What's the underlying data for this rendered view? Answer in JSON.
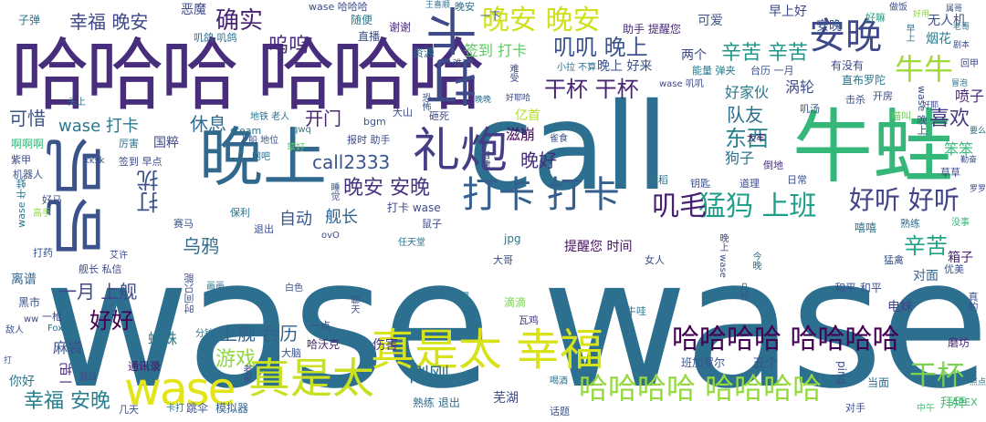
{
  "words": [
    {
      "text": "wase wase",
      "color": "#2c6f8e"
    },
    {
      "text": "call",
      "color": "#2c6f8e"
    },
    {
      "text": "哈哈哈 哈哈哈",
      "color": "#472d7b"
    },
    {
      "text": "牛蛙",
      "color": "#35b779"
    },
    {
      "text": "晚上",
      "color": "#31688e"
    },
    {
      "text": "真是太 幸福",
      "color": "#d8e219"
    },
    {
      "text": "叽叽",
      "color": "#3b528b"
    },
    {
      "text": "礼炮",
      "color": "#433e85"
    },
    {
      "text": "打卡 打卡",
      "color": "#355f8d"
    },
    {
      "text": "打卡",
      "color": "#3e4a89"
    },
    {
      "text": "wase",
      "color": "#e2e418"
    },
    {
      "text": "真是太",
      "color": "#c8e020"
    },
    {
      "text": "哈哈哈哈 哈哈哈哈",
      "color": "#440154"
    },
    {
      "text": "哈哈哈哈 哈哈哈哈",
      "color": "#95d840"
    },
    {
      "text": "晚安 晚安",
      "color": "#d0e11c"
    },
    {
      "text": "安晚",
      "color": "#3e4989"
    },
    {
      "text": "牛牛",
      "color": "#a0da39"
    },
    {
      "text": "猛犸 上班",
      "color": "#1f9e89"
    },
    {
      "text": "好听 好听",
      "color": "#414487"
    },
    {
      "text": "叽毛",
      "color": "#482173"
    },
    {
      "text": "确实",
      "color": "#482475"
    },
    {
      "text": "晚安 安晚",
      "color": "#46327e"
    },
    {
      "text": "打扰",
      "color": "#3b528b"
    },
    {
      "text": "干杯",
      "color": "#7ad151"
    },
    {
      "text": "幸福 晚安",
      "color": "#3e4989"
    },
    {
      "text": "叽叽 晚上",
      "color": "#3b528b"
    },
    {
      "text": "干杯 干杯",
      "color": "#482475"
    },
    {
      "text": "呜呜",
      "color": "#482878"
    },
    {
      "text": "call2333",
      "color": "#39568c"
    },
    {
      "text": "东西",
      "color": "#26828e"
    },
    {
      "text": "辛苦 辛苦",
      "color": "#1f968b"
    },
    {
      "text": "好好",
      "color": "#440154"
    },
    {
      "text": "游戏",
      "color": "#8fd744"
    },
    {
      "text": "幸福 安晚",
      "color": "#277f8e"
    },
    {
      "text": "辛苦",
      "color": "#20a386"
    },
    {
      "text": "喜欢",
      "color": "#453882"
    },
    {
      "text": "晚好",
      "color": "#472c7a"
    },
    {
      "text": "刚刚",
      "color": "#2d708e"
    },
    {
      "text": "一月 上舰",
      "color": "#3f4788"
    },
    {
      "text": "上舰 台历",
      "color": "#33628d"
    },
    {
      "text": "wase 打卡",
      "color": "#2a788e"
    },
    {
      "text": "开门",
      "color": "#482576"
    },
    {
      "text": "可惜",
      "color": "#3b528b"
    },
    {
      "text": "休息",
      "color": "#31688e"
    },
    {
      "text": "队友",
      "color": "#2e6e8e"
    },
    {
      "text": "自动",
      "color": "#3a548c"
    },
    {
      "text": "舰长",
      "color": "#32648e"
    },
    {
      "text": "乌鸦",
      "color": "#2f6c8e"
    },
    {
      "text": "滋崩",
      "color": "#460b5e"
    },
    {
      "text": "签到 打卡",
      "color": "#5ec962"
    },
    {
      "text": "好家伙",
      "color": "#2a788e"
    },
    {
      "text": "涡轮",
      "color": "#3d4d8a"
    },
    {
      "text": "喷子",
      "color": "#482878"
    },
    {
      "text": "狗子",
      "color": "#2c718e"
    },
    {
      "text": "笨笨",
      "color": "#35b779"
    },
    {
      "text": "提醒您 时间",
      "color": "#471063"
    },
    {
      "text": "蜘蛛",
      "color": "#2a788e"
    },
    {
      "text": "麻袋",
      "color": "#3b528b"
    },
    {
      "text": "伤害",
      "color": "#46337f"
    },
    {
      "text": "芜湖",
      "color": "#3e4a89"
    },
    {
      "text": "电妹",
      "color": "#3f4788"
    },
    {
      "text": "对面",
      "color": "#33638d"
    },
    {
      "text": "箱子",
      "color": "#481f70"
    },
    {
      "text": "可爱",
      "color": "#3b528b"
    },
    {
      "text": "早上好",
      "color": "#3e4989"
    },
    {
      "text": "两个",
      "color": "#3e4989"
    },
    {
      "text": "安晚",
      "color": "#3b528b"
    },
    {
      "text": "亿首",
      "color": "#b5de2b"
    },
    {
      "text": "晚上 好来",
      "color": "#3b528b"
    },
    {
      "text": "直布罗陀",
      "color": "#2a768e"
    },
    {
      "text": "恶魔",
      "color": "#3e4a89"
    },
    {
      "text": "无人机",
      "color": "#3b528b"
    },
    {
      "text": "烟花",
      "color": "#287c8e"
    },
    {
      "text": "离谱",
      "color": "#33638d"
    },
    {
      "text": "国粹",
      "color": "#3e4a89"
    },
    {
      "text": "一把",
      "color": "#482677"
    },
    {
      "text": "你好",
      "color": "#2a788e"
    },
    {
      "text": "拜拜",
      "color": "#46c06f"
    },
    {
      "text": "五个",
      "color": "#3b528b"
    },
    {
      "text": "班加罗尔",
      "color": "#39568c"
    },
    {
      "text": "磨坊",
      "color": "#482878"
    },
    {
      "text": "哈沃克",
      "color": "#482071"
    },
    {
      "text": "模拟器",
      "color": "#33638d"
    },
    {
      "text": "跳伞",
      "color": "#3b528b"
    },
    {
      "text": "通讯录",
      "color": "#471365"
    },
    {
      "text": "熟练 退出",
      "color": "#2f6c8e"
    },
    {
      "text": "当面",
      "color": "#2f6c8e"
    },
    {
      "text": "资源",
      "color": "#2f6c8e"
    },
    {
      "text": "谢谢",
      "color": "#472c7a"
    },
    {
      "text": "直播",
      "color": "#3b528b"
    },
    {
      "text": "随便",
      "color": "#2a788e"
    },
    {
      "text": "子弹",
      "color": "#2c718e"
    },
    {
      "text": "叽鸽 叽鸽",
      "color": "#2f6c8e"
    },
    {
      "text": "wase 哈哈哈",
      "color": "#3e4a89"
    },
    {
      "text": "晚安",
      "color": "#2c718e"
    },
    {
      "text": "一下",
      "color": "#3b528b"
    },
    {
      "text": "好嘛",
      "color": "#1f9e89"
    },
    {
      "text": "助手 提醒您",
      "color": "#482878"
    },
    {
      "text": "台历 一月",
      "color": "#3b528b"
    },
    {
      "text": "能量 弹夹",
      "color": "#2a788e"
    },
    {
      "text": "有没有",
      "color": "#3e4a89"
    },
    {
      "text": "击杀",
      "color": "#3b528b"
    },
    {
      "text": "开房",
      "color": "#3e4a89"
    },
    {
      "text": "叽汤",
      "color": "#3b528b"
    },
    {
      "text": "喵叫",
      "color": "#6ccd5a"
    },
    {
      "text": "大牢",
      "color": "#46085c"
    },
    {
      "text": "日常",
      "color": "#3b528b"
    },
    {
      "text": "倒地",
      "color": "#46307e"
    },
    {
      "text": "熟练",
      "color": "#2f6c8e"
    },
    {
      "text": "没事",
      "color": "#35b779"
    },
    {
      "text": "嘻嘻",
      "color": "#2c718e"
    },
    {
      "text": "草草",
      "color": "#3e4a89"
    },
    {
      "text": "真的",
      "color": "#3b528b"
    },
    {
      "text": "优美",
      "color": "#3b528b"
    },
    {
      "text": "猛禽",
      "color": "#3b528b"
    },
    {
      "text": "和平 和平",
      "color": "#3b528b"
    },
    {
      "text": "女人",
      "color": "#3e4a89"
    },
    {
      "text": "大哥",
      "color": "#3b528b"
    },
    {
      "text": "滴滴",
      "color": "#7ad151"
    },
    {
      "text": "手镯",
      "color": "#2a788e"
    },
    {
      "text": "牛哇",
      "color": "#2c718e"
    },
    {
      "text": "瓦鸡",
      "color": "#46327e"
    },
    {
      "text": "大脑",
      "color": "#3b528b"
    },
    {
      "text": "分钟",
      "color": "#2c718e"
    },
    {
      "text": "一点",
      "color": "#3e4a89"
    },
    {
      "text": "退出",
      "color": "#3b528b"
    },
    {
      "text": "保利",
      "color": "#2c718e"
    },
    {
      "text": "赛马",
      "color": "#3b528b"
    },
    {
      "text": "鼠子",
      "color": "#3e4a89"
    },
    {
      "text": "jpg",
      "color": "#2a788e"
    },
    {
      "text": "打卡 wase",
      "color": "#3e4a89"
    },
    {
      "text": "钥匙",
      "color": "#3b528b"
    },
    {
      "text": "道理",
      "color": "#3e4a89"
    },
    {
      "text": "早稻",
      "color": "#2c718e"
    },
    {
      "text": "砸死",
      "color": "#3e4a89"
    },
    {
      "text": "bgm",
      "color": "#3b528b"
    },
    {
      "text": "大山",
      "color": "#3e4a89"
    },
    {
      "text": "steam",
      "color": "#2c718e"
    },
    {
      "text": "上船 地位",
      "color": "#3b528b"
    },
    {
      "text": "qwq",
      "color": "#2a788e"
    },
    {
      "text": "报时 助手",
      "color": "#3e4a89"
    },
    {
      "text": "雀食",
      "color": "#3b528b"
    },
    {
      "text": "地铁 老人",
      "color": "#2c718e"
    },
    {
      "text": "啊啊啊",
      "color": "#35b779"
    },
    {
      "text": "紫甲",
      "color": "#3e4a89"
    },
    {
      "text": "机器人",
      "color": "#3b528b"
    },
    {
      "text": "签到 早点",
      "color": "#3e4a89"
    },
    {
      "text": "厉害",
      "color": "#2c718e"
    },
    {
      "text": "kksk",
      "color": "#3b528b"
    },
    {
      "text": "网吧",
      "color": "#2c718e"
    },
    {
      "text": "草好",
      "color": "#5ec962"
    },
    {
      "text": "好马",
      "color": "#3e4a89"
    },
    {
      "text": "高手",
      "color": "#90d743"
    },
    {
      "text": "打药",
      "color": "#3b528b"
    },
    {
      "text": "舰长 私信",
      "color": "#3e4a89"
    },
    {
      "text": "黑市",
      "color": "#3b528b"
    },
    {
      "text": "一枪",
      "color": "#3e4a89"
    },
    {
      "text": "Fox22",
      "color": "#2c718e"
    },
    {
      "text": "敌人",
      "color": "#3b528b"
    },
    {
      "text": "ww",
      "color": "#3e4a89"
    },
    {
      "text": "几天",
      "color": "#3b528b"
    },
    {
      "text": "卡打",
      "color": "#2c718e"
    },
    {
      "text": "泪目",
      "color": "#3e4a89"
    },
    {
      "text": "话题",
      "color": "#3b528b"
    },
    {
      "text": "喝酒",
      "color": "#2c718e"
    },
    {
      "text": "对手",
      "color": "#3e4a89"
    },
    {
      "text": "中午",
      "color": "#46c06f"
    },
    {
      "text": "APEX",
      "color": "#35b779"
    },
    {
      "text": "ping",
      "color": "#3b528b"
    },
    {
      "text": "老家",
      "color": "#3e4a89"
    },
    {
      "text": "画画",
      "color": "#2c718e"
    },
    {
      "text": "白色",
      "color": "#3b528b"
    },
    {
      "text": "艾许",
      "color": "#3e4a89"
    },
    {
      "text": "聊天",
      "color": "#3b528b"
    },
    {
      "text": "任天堂",
      "color": "#2c718e"
    },
    {
      "text": "ovO",
      "color": "#3e4a89"
    },
    {
      "text": "睡觉",
      "color": "#3b528b"
    },
    {
      "text": "头上",
      "color": "#2c718e"
    },
    {
      "text": "回甲",
      "color": "#3e4a89"
    },
    {
      "text": "好用",
      "color": "#8fd744"
    },
    {
      "text": "做饭",
      "color": "#3b528b"
    },
    {
      "text": "小拉 不算",
      "color": "#2c718e"
    },
    {
      "text": "难受",
      "color": "#3e4a89"
    },
    {
      "text": "难过",
      "color": "#3b528b"
    },
    {
      "text": "王喜顺",
      "color": "#2c718e"
    },
    {
      "text": "wase 叽叽",
      "color": "#3e4a89"
    },
    {
      "text": "恐怖",
      "color": "#3b528b"
    },
    {
      "text": "冒泡",
      "color": "#2c718e"
    },
    {
      "text": "好耶",
      "color": "#3e4a89"
    },
    {
      "text": "剧本",
      "color": "#3b528b"
    },
    {
      "text": "老哥",
      "color": "#2c718e"
    },
    {
      "text": "晚上 wase",
      "color": "#3e4a89"
    },
    {
      "text": "今晚",
      "color": "#2c718e"
    },
    {
      "text": "几秒",
      "color": "#3b528b"
    },
    {
      "text": "时间只能",
      "color": "#3e4a89"
    },
    {
      "text": "wase 晚上",
      "color": "#3b528b"
    },
    {
      "text": "早上",
      "color": "#2c718e"
    },
    {
      "text": "好耶哈",
      "color": "#3e4a89"
    },
    {
      "text": "属哥",
      "color": "#3b528b"
    },
    {
      "text": "晚晚",
      "color": "#2c718e"
    },
    {
      "text": "自律",
      "color": "#3e4a89"
    },
    {
      "text": "要么",
      "color": "#2c718e"
    },
    {
      "text": "勤奋",
      "color": "#3b528b"
    },
    {
      "text": "罗罗",
      "color": "#3e4a89"
    },
    {
      "text": "打",
      "color": "#3b528b"
    },
    {
      "text": "一点点",
      "color": "#2c718e"
    },
    {
      "text": "wase 牛蛙",
      "color": "#2a788e"
    }
  ]
}
